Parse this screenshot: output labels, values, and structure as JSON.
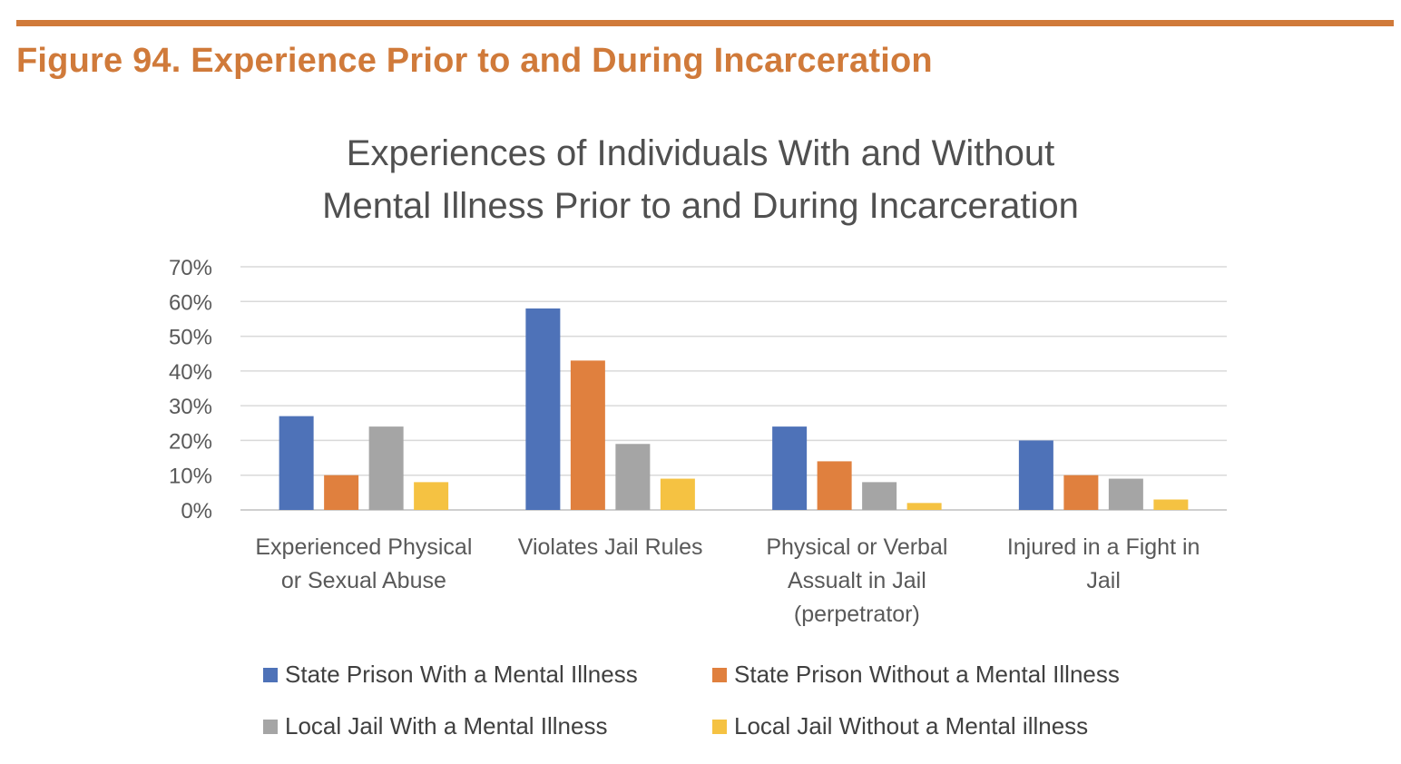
{
  "figure_title": "Figure 94. Experience Prior to and During Incarceration",
  "chart_data": {
    "type": "bar",
    "title_lines": [
      "Experiences of Individuals With and Without",
      "Mental Illness Prior to and During Incarceration"
    ],
    "categories": [
      [
        "Experienced Physical",
        "or Sexual Abuse"
      ],
      [
        "Violates Jail Rules"
      ],
      [
        "Physical or Verbal",
        "Assualt in Jail",
        "(perpetrator)"
      ],
      [
        "Injured in a Fight in",
        "Jail"
      ]
    ],
    "series": [
      {
        "name": "State Prison With a Mental Illness",
        "color": "#4e72b8",
        "values": [
          27,
          58,
          24,
          20
        ]
      },
      {
        "name": "State Prison Without a Mental Illness",
        "color": "#e0803e",
        "values": [
          10,
          43,
          14,
          10
        ]
      },
      {
        "name": "Local Jail With a Mental Illness",
        "color": "#a5a5a5",
        "values": [
          24,
          19,
          8,
          9
        ]
      },
      {
        "name": "Local Jail Without a Mental illness",
        "color": "#f5c242",
        "values": [
          8,
          9,
          2,
          3
        ]
      }
    ],
    "yticks": [
      "0%",
      "10%",
      "20%",
      "30%",
      "40%",
      "50%",
      "60%",
      "70%"
    ],
    "ylim": [
      0,
      70
    ],
    "grid": true,
    "legend_position": "bottom"
  }
}
